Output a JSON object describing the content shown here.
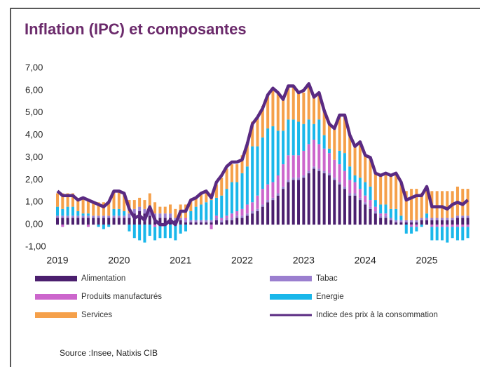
{
  "chart_data": {
    "type": "bar",
    "stacked": true,
    "title": "Inflation (IPC) et composantes",
    "source": "Source :Insee,  Natixis CIB",
    "legend": "bottom",
    "grid": false,
    "ylim": [
      -1,
      7
    ],
    "yticks": [
      {
        "value": -1,
        "label": "-1,00"
      },
      {
        "value": 0,
        "label": "0,00"
      },
      {
        "value": 1,
        "label": "1,00"
      },
      {
        "value": 2,
        "label": "2,00"
      },
      {
        "value": 3,
        "label": "3,00"
      },
      {
        "value": 4,
        "label": "4,00"
      },
      {
        "value": 5,
        "label": "5,00"
      },
      {
        "value": 6,
        "label": "6,00"
      },
      {
        "value": 7,
        "label": "7,00"
      }
    ],
    "categories": [
      "2019",
      null,
      null,
      null,
      null,
      null,
      null,
      null,
      null,
      null,
      null,
      null,
      "2020",
      null,
      null,
      null,
      null,
      null,
      null,
      null,
      null,
      null,
      null,
      null,
      "2021",
      null,
      null,
      null,
      null,
      null,
      null,
      null,
      null,
      null,
      null,
      null,
      "2022",
      null,
      null,
      null,
      null,
      null,
      null,
      null,
      null,
      null,
      null,
      null,
      "2023",
      null,
      null,
      null,
      null,
      null,
      null,
      null,
      null,
      null,
      null,
      null,
      "2024",
      null,
      null,
      null,
      null,
      null,
      null,
      null,
      null,
      null,
      null,
      null,
      "2025",
      null,
      null,
      null,
      null,
      null,
      null,
      null,
      null
    ],
    "series": [
      {
        "name": "Alimentation",
        "color": "#4b1f6e",
        "values": [
          0.3,
          0.3,
          0.3,
          0.3,
          0.3,
          0.3,
          0.3,
          0.3,
          0.3,
          0.3,
          0.3,
          0.3,
          0.3,
          0.3,
          0.3,
          0.5,
          0.6,
          0.5,
          0.4,
          0.3,
          0.3,
          0.3,
          0.3,
          0.2,
          0.2,
          0.1,
          0.1,
          0.1,
          0.1,
          0.1,
          0.1,
          0.2,
          0.1,
          0.2,
          0.2,
          0.3,
          0.3,
          0.4,
          0.5,
          0.6,
          0.8,
          1.0,
          1.1,
          1.3,
          1.6,
          1.9,
          2.0,
          2.0,
          2.1,
          2.3,
          2.5,
          2.4,
          2.3,
          2.2,
          2.0,
          1.8,
          1.6,
          1.3,
          1.3,
          1.1,
          0.9,
          0.7,
          0.5,
          0.3,
          0.3,
          0.2,
          0.1,
          0.1,
          0.1,
          0.1,
          0.1,
          0.2,
          0.2,
          0.2,
          0.2,
          0.2,
          0.2,
          0.2,
          0.3,
          0.3,
          0.3
        ]
      },
      {
        "name": "Tabac",
        "color": "#9b7fcf",
        "values": [
          0.1,
          0.1,
          0.1,
          0.1,
          0.1,
          0.1,
          0.1,
          0.1,
          0.1,
          0.1,
          0.1,
          0.1,
          0.1,
          0.1,
          0.2,
          0.2,
          0.2,
          0.2,
          0.2,
          0.2,
          0.2,
          0.2,
          0.2,
          0.1,
          0.1,
          0.1,
          0.1,
          0.1,
          0.1,
          0.1,
          0.1,
          0.1,
          0.1,
          0.1,
          0.1,
          0.1,
          0.1,
          0.1,
          0.1,
          0.1,
          0.1,
          0.1,
          0.1,
          0.1,
          0.1,
          0.1,
          0.1,
          0.1,
          0.1,
          0.1,
          0.1,
          0.1,
          0.1,
          0.1,
          0.1,
          0.1,
          0.1,
          0.1,
          0.1,
          0.1,
          0.1,
          0.1,
          0.1,
          0.1,
          0.1,
          0.1,
          0.1,
          0.1,
          0.1,
          0.1,
          0.1,
          0.1,
          0.1,
          0.1,
          0.1,
          0.1,
          0.1,
          0.1,
          0.1,
          0.1,
          0.1
        ]
      },
      {
        "name": "Produits manufacturés",
        "color": "#cc66cc",
        "values": [
          0.0,
          -0.1,
          0.0,
          0.0,
          0.0,
          0.0,
          -0.1,
          0.0,
          0.0,
          0.0,
          0.0,
          0.0,
          0.0,
          0.0,
          0.0,
          0.0,
          0.0,
          0.0,
          0.1,
          -0.1,
          0.0,
          0.0,
          0.0,
          0.0,
          0.0,
          0.1,
          0.0,
          0.0,
          0.0,
          0.0,
          -0.2,
          0.1,
          0.1,
          0.1,
          0.2,
          0.2,
          0.3,
          0.4,
          0.4,
          0.6,
          0.7,
          0.7,
          0.7,
          0.8,
          1.0,
          1.1,
          1.0,
          1.0,
          1.1,
          1.2,
          1.2,
          1.1,
          1.0,
          0.9,
          0.8,
          0.8,
          0.7,
          0.6,
          0.5,
          0.4,
          0.3,
          0.3,
          0.2,
          0.1,
          0.1,
          0.0,
          0.0,
          0.0,
          0.0,
          -0.1,
          -0.1,
          0.0,
          0.0,
          -0.1,
          -0.1,
          -0.1,
          -0.1,
          -0.1,
          -0.1,
          -0.1,
          -0.1
        ]
      },
      {
        "name": "Energie",
        "color": "#1ab7ea",
        "values": [
          0.4,
          0.3,
          0.4,
          0.4,
          0.2,
          0.1,
          0.1,
          0.0,
          -0.1,
          -0.2,
          -0.1,
          0.3,
          0.3,
          0.2,
          -0.3,
          -0.6,
          -0.7,
          -0.8,
          -0.5,
          -0.6,
          -0.6,
          -0.6,
          -0.6,
          -0.7,
          -0.4,
          -0.3,
          0.4,
          0.6,
          0.7,
          0.8,
          0.9,
          0.8,
          1.0,
          1.2,
          1.4,
          1.3,
          1.6,
          1.7,
          2.5,
          2.2,
          2.3,
          2.5,
          2.5,
          2.0,
          1.5,
          1.6,
          1.6,
          1.5,
          1.2,
          1.1,
          0.7,
          1.1,
          0.6,
          0.2,
          0.0,
          0.6,
          0.8,
          0.6,
          0.3,
          0.5,
          0.6,
          0.6,
          0.3,
          0.4,
          0.4,
          0.4,
          0.5,
          0.2,
          -0.4,
          -0.3,
          -0.2,
          -0.1,
          0.2,
          -0.6,
          -0.6,
          -0.6,
          -0.7,
          -0.5,
          -0.6,
          -0.6,
          -0.5
        ]
      },
      {
        "name": "Services",
        "color": "#f5a04a",
        "values": [
          0.6,
          0.7,
          0.6,
          0.6,
          0.5,
          0.7,
          0.6,
          0.6,
          0.6,
          0.6,
          0.6,
          0.8,
          0.8,
          0.8,
          0.6,
          0.4,
          0.4,
          0.4,
          0.7,
          0.5,
          0.3,
          0.3,
          0.4,
          0.4,
          0.6,
          0.6,
          0.5,
          0.4,
          0.5,
          0.5,
          0.3,
          0.6,
          0.8,
          0.9,
          0.8,
          0.8,
          0.8,
          1.1,
          1.1,
          1.3,
          1.4,
          1.5,
          1.7,
          1.7,
          1.4,
          1.5,
          1.5,
          1.3,
          1.4,
          1.6,
          1.2,
          1.2,
          1.1,
          1.1,
          1.4,
          1.6,
          1.7,
          1.4,
          1.3,
          1.6,
          1.2,
          1.3,
          1.2,
          1.3,
          1.4,
          1.5,
          1.6,
          1.5,
          1.3,
          1.4,
          1.4,
          1.1,
          1.2,
          1.2,
          1.2,
          1.2,
          1.2,
          1.2,
          1.3,
          1.2,
          1.2
        ]
      },
      {
        "name": "Indice des prix à la consommation",
        "type": "line",
        "color": "#5a2a82",
        "values": [
          1.5,
          1.3,
          1.3,
          1.3,
          1.1,
          1.2,
          1.1,
          1.0,
          0.9,
          0.8,
          1.0,
          1.5,
          1.5,
          1.4,
          0.7,
          0.3,
          0.4,
          0.2,
          0.8,
          0.2,
          0.0,
          0.0,
          0.2,
          0.0,
          0.6,
          0.6,
          1.1,
          1.2,
          1.4,
          1.5,
          1.2,
          1.9,
          2.2,
          2.6,
          2.8,
          2.8,
          2.9,
          3.6,
          4.5,
          4.8,
          5.2,
          5.8,
          6.1,
          5.9,
          5.6,
          6.2,
          6.2,
          5.9,
          6.0,
          6.3,
          5.7,
          5.9,
          5.1,
          4.5,
          4.3,
          4.9,
          4.9,
          4.0,
          3.5,
          3.7,
          3.1,
          3.0,
          2.3,
          2.2,
          2.3,
          2.2,
          2.3,
          1.9,
          1.1,
          1.2,
          1.3,
          1.3,
          1.7,
          0.8,
          0.8,
          0.8,
          0.7,
          0.9,
          1.0,
          0.9,
          1.1
        ]
      }
    ]
  }
}
